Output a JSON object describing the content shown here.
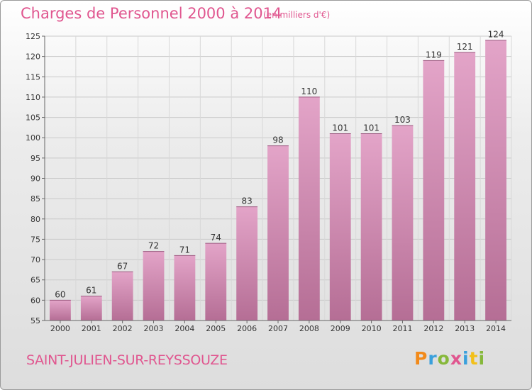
{
  "header": {
    "title": "Charges de Personnel 2000 à 2014",
    "unit": "(en milliers d'€)"
  },
  "footer": {
    "place": "SAINT-JULIEN-SUR-REYSSOUZE",
    "logo": [
      "P",
      "r",
      "o",
      "x",
      "i",
      "t",
      "i"
    ]
  },
  "colors": {
    "title": "#e0568f",
    "bar_top": "#e3a4c8",
    "bar_bottom": "#b56e95"
  },
  "chart_data": {
    "type": "bar",
    "title": "Charges de Personnel 2000 à 2014",
    "subtitle": "(en milliers d'€)",
    "categories": [
      "2000",
      "2001",
      "2002",
      "2003",
      "2004",
      "2005",
      "2006",
      "2007",
      "2008",
      "2009",
      "2010",
      "2011",
      "2012",
      "2013",
      "2014"
    ],
    "values": [
      60,
      61,
      67,
      72,
      71,
      74,
      83,
      98,
      110,
      101,
      101,
      103,
      119,
      121,
      124
    ],
    "ylim": [
      55,
      125
    ],
    "yticks": [
      55,
      60,
      65,
      70,
      75,
      80,
      85,
      90,
      95,
      100,
      105,
      110,
      115,
      120,
      125
    ],
    "grid": true
  }
}
